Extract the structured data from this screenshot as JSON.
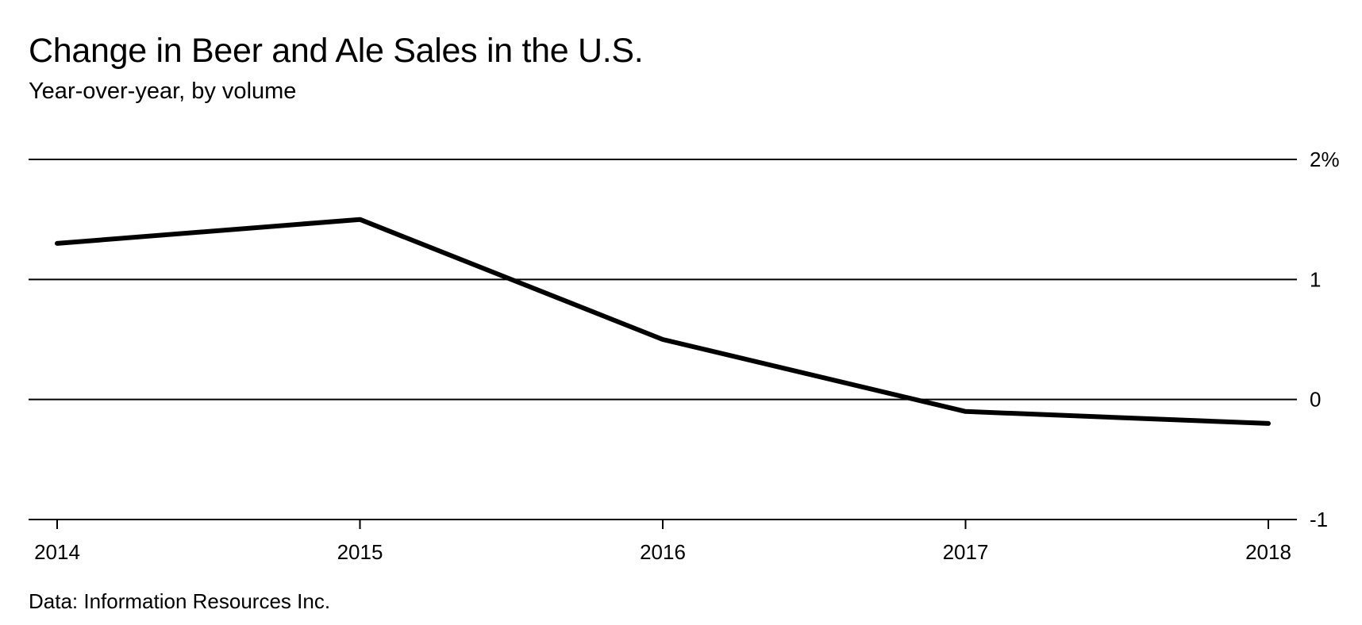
{
  "title": "Change in Beer and Ale Sales in the U.S.",
  "subtitle": "Year-over-year, by volume",
  "source": "Data: Information Resources Inc.",
  "chart_data": {
    "type": "line",
    "title": "Change in Beer and Ale Sales in the U.S.",
    "subtitle": "Year-over-year, by volume",
    "x": [
      "2014",
      "2015",
      "2016",
      "2017",
      "2018"
    ],
    "series": [
      {
        "values": [
          1.3,
          1.5,
          0.5,
          -0.1,
          -0.2
        ]
      }
    ],
    "ylim": [
      -1,
      2
    ],
    "yticks": [
      2,
      1,
      0,
      -1
    ],
    "ytick_labels": [
      "2%",
      "1",
      "0",
      "-1"
    ],
    "y_axis_position": "right",
    "grid": true,
    "legend": false,
    "line_color": "#000000",
    "grid_color": "#000000"
  }
}
